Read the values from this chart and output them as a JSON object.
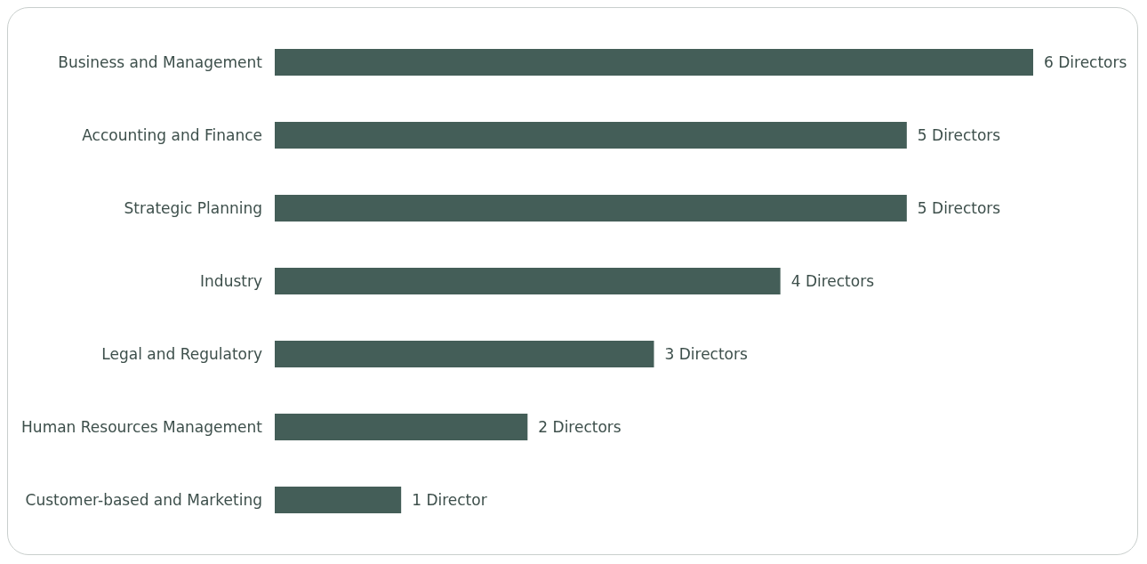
{
  "chart_data": {
    "type": "bar",
    "orientation": "horizontal",
    "categories": [
      "Business and Management",
      "Accounting and Finance",
      "Strategic Planning",
      "Industry",
      "Legal and Regulatory",
      "Human Resources Management",
      "Customer-based and Marketing"
    ],
    "values": [
      6,
      5,
      5,
      4,
      3,
      2,
      1
    ],
    "value_labels": [
      "6 Directors",
      "5 Directors",
      "5 Directors",
      "4 Directors",
      "3 Directors",
      "2 Directors",
      "1 Director"
    ],
    "color": "#445e58"
  }
}
